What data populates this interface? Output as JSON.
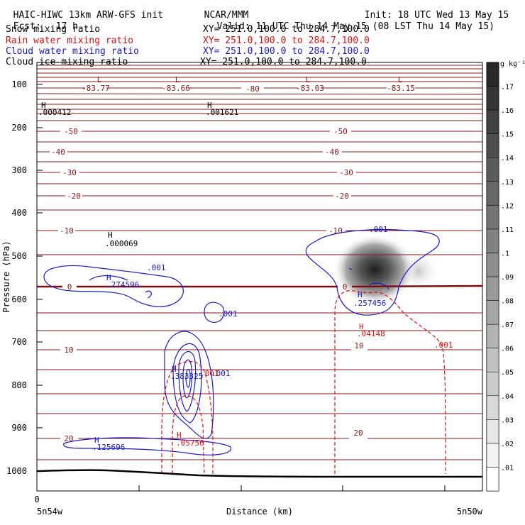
{
  "header": {
    "model": "HAIC-HIWC 13km ARW-GFS init",
    "org": "NCAR/MMM",
    "init": "Init: 18 UTC Wed 13 May 15",
    "fcst_label": "Fcst:",
    "fcst_value": "17 h",
    "valid": "Valid: 11 UTC Thu 14 May 15 (08 LST Thu 14 May 15)",
    "fields": [
      {
        "name": "Snow mixing ratio",
        "xy": "XY= 251.0,100.0 to 284.7,100.0",
        "color": "#000000"
      },
      {
        "name": "Rain water mixing ratio",
        "xy": "XY= 251.0,100.0 to 284.7,100.0",
        "color": "#e01010"
      },
      {
        "name": "Cloud water mixing ratio",
        "xy": "XY= 251.0,100.0 to 284.7,100.0",
        "color": "#1a1acc"
      },
      {
        "name": "Cloud ice mixing ratio",
        "xy": "XY= 251.0,100.0 to 284.7,100.0",
        "color": "#000000"
      }
    ]
  },
  "chart_data": {
    "type": "contour",
    "ylabel": "Pressure (hPa)",
    "xlabel": "Distance (km)",
    "x_tick": "0",
    "x_left_label": "5n54w",
    "x_right_label": "5n50w",
    "y_ticks": [
      100,
      200,
      300,
      400,
      500,
      600,
      700,
      800,
      900,
      1000
    ],
    "ylim": [
      1050,
      50
    ],
    "colorbar": {
      "unit": "g kg⁻¹",
      "levels": [
        ".01",
        ".02",
        ".03",
        ".04",
        ".05",
        ".06",
        ".07",
        ".08",
        ".09",
        ".1",
        ".11",
        ".12",
        ".13",
        ".14",
        ".15",
        ".16",
        ".17"
      ]
    },
    "temperature_labels": [
      "-83.77",
      "-83.66",
      "-80",
      "-83.03",
      "-83.15",
      "-50",
      "-50",
      "-40",
      "-40",
      "-30",
      "-30",
      "-20",
      "-20",
      "-10",
      "-10",
      "0",
      "0",
      "10",
      "10",
      "20",
      "20"
    ],
    "extrema": [
      {
        "type": "L",
        "value": "",
        "color": "#8b1a1a"
      },
      {
        "type": "L",
        "value": "",
        "color": "#8b1a1a"
      },
      {
        "type": "L",
        "value": "",
        "color": "#8b1a1a"
      },
      {
        "type": "L",
        "value": "",
        "color": "#8b1a1a"
      },
      {
        "type": "H",
        "value": ".000412",
        "color": "#000000"
      },
      {
        "type": "H",
        "value": ".001621",
        "color": "#000000"
      },
      {
        "type": "H",
        "value": ".000069",
        "color": "#000000"
      },
      {
        "type": "H",
        "value": ".274596",
        "color": "#1a1acc"
      },
      {
        "type": "H",
        "value": ".257456",
        "color": "#1a1acc"
      },
      {
        "type": "H",
        "value": ".383325",
        "color": "#1a1acc"
      },
      {
        "type": "H",
        "value": ".125696",
        "color": "#1a1acc"
      },
      {
        "type": "H",
        "value": ".04148",
        "color": "#e01010"
      },
      {
        "type": "H",
        "value": ".05756",
        "color": "#e01010"
      }
    ],
    "contour_labels": [
      {
        "text": ".001",
        "color": "#1a1acc"
      },
      {
        "text": ".001",
        "color": "#1a1acc"
      },
      {
        "text": ".001",
        "color": "#1a1acc"
      },
      {
        "text": ".001",
        "color": "#1a1acc"
      },
      {
        "text": ".001",
        "color": "#e01010"
      },
      {
        "text": ".001",
        "color": "#e01010"
      }
    ],
    "colors": {
      "temperature": "#8b1a1a",
      "rain": "#e01010",
      "cloud_water": "#1a1acc",
      "terrain": "#000000"
    }
  }
}
